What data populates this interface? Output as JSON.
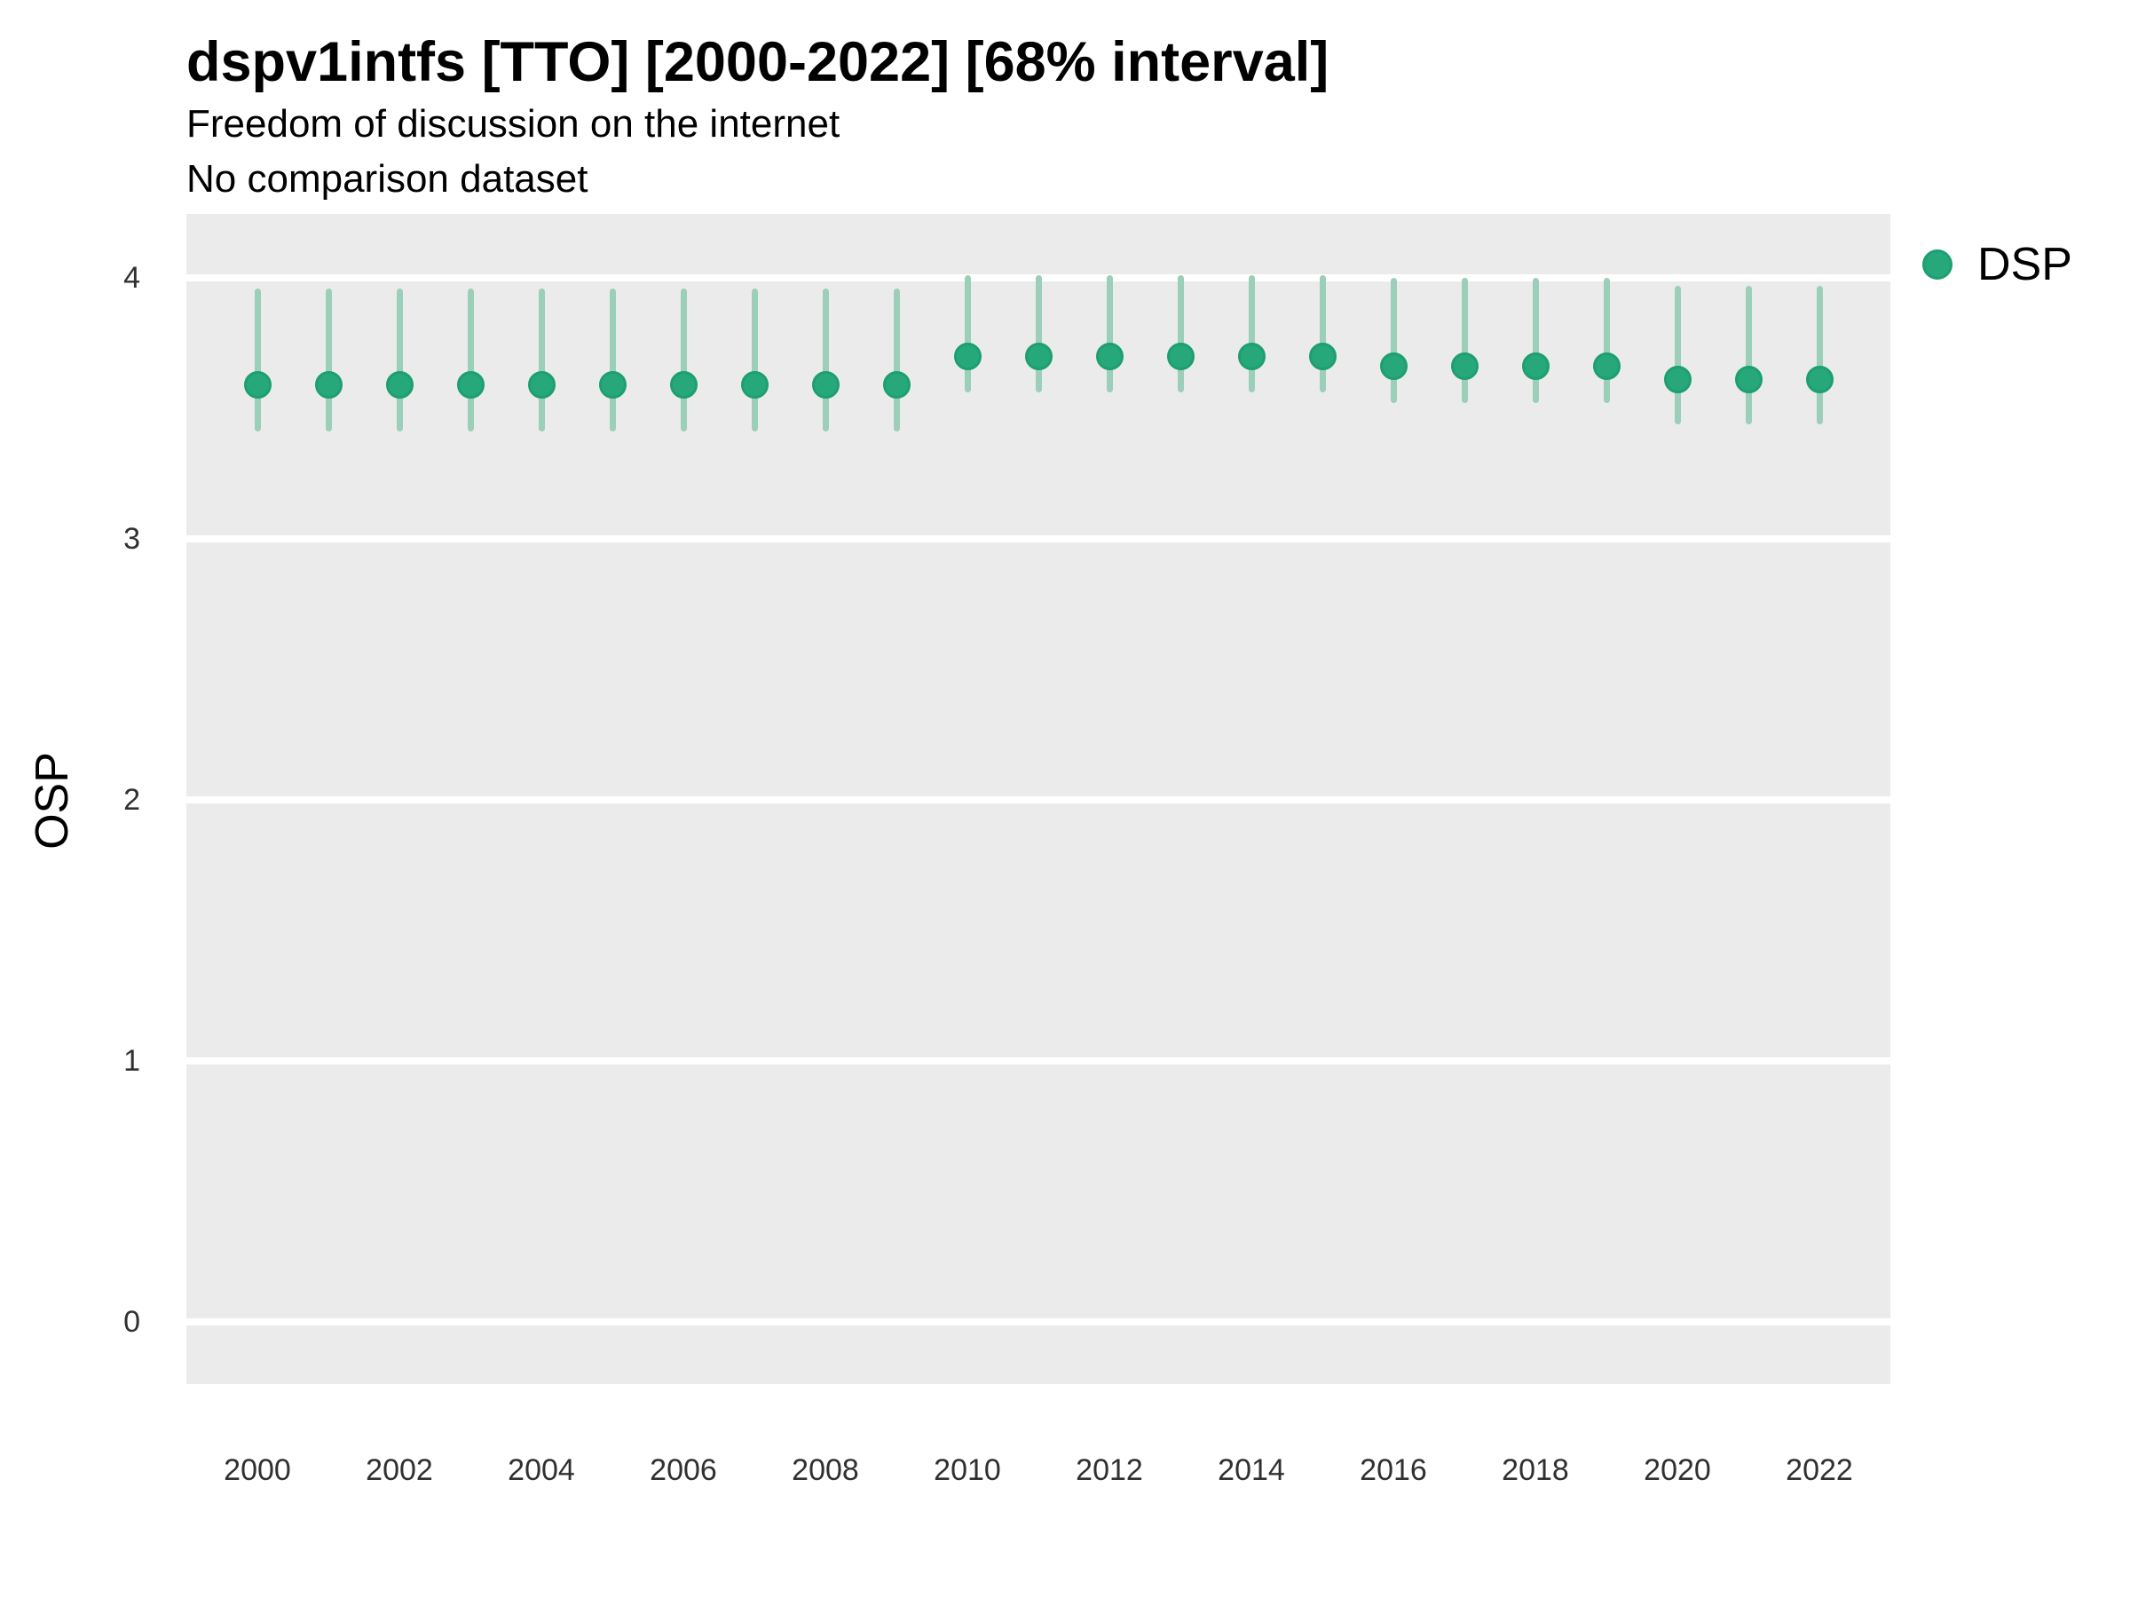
{
  "header": {
    "title": "dspv1intfs [TTO] [2000-2022] [68% interval]",
    "subtitle1": "Freedom of discussion on the internet",
    "subtitle2": "No comparison dataset"
  },
  "legend": {
    "label": "DSP"
  },
  "colors": {
    "point_fill": "#27A87A",
    "point_ring": "#1D9F70",
    "interval": "#9BCFB9",
    "panel_bg": "#EBEBEB",
    "gridline": "#FFFFFF",
    "tick_text": "#303030",
    "text": "#000000"
  },
  "chart_data": {
    "type": "scatter",
    "subtype": "pointrange",
    "title": "dspv1intfs [TTO] [2000-2022] [68% interval]",
    "subtitle": "Freedom of discussion on the internet / No comparison dataset",
    "xlabel": "",
    "ylabel": "OSP",
    "ylim": [
      0,
      4
    ],
    "y_ticks": [
      4,
      3,
      2,
      1,
      0
    ],
    "x_ticks": [
      2000,
      2002,
      2004,
      2006,
      2008,
      2010,
      2012,
      2014,
      2016,
      2018,
      2020,
      2022
    ],
    "grid": "horizontal major gridlines, white on gray panel",
    "legend_position": "right",
    "interval_level": "68%",
    "series": [
      {
        "name": "DSP",
        "points": [
          {
            "year": 2000,
            "value": 3.59,
            "lo": 3.41,
            "hi": 3.96
          },
          {
            "year": 2001,
            "value": 3.59,
            "lo": 3.41,
            "hi": 3.96
          },
          {
            "year": 2002,
            "value": 3.59,
            "lo": 3.41,
            "hi": 3.96
          },
          {
            "year": 2003,
            "value": 3.59,
            "lo": 3.41,
            "hi": 3.96
          },
          {
            "year": 2004,
            "value": 3.59,
            "lo": 3.41,
            "hi": 3.96
          },
          {
            "year": 2005,
            "value": 3.59,
            "lo": 3.41,
            "hi": 3.96
          },
          {
            "year": 2006,
            "value": 3.59,
            "lo": 3.41,
            "hi": 3.96
          },
          {
            "year": 2007,
            "value": 3.59,
            "lo": 3.41,
            "hi": 3.96
          },
          {
            "year": 2008,
            "value": 3.59,
            "lo": 3.41,
            "hi": 3.96
          },
          {
            "year": 2009,
            "value": 3.59,
            "lo": 3.41,
            "hi": 3.96
          },
          {
            "year": 2010,
            "value": 3.7,
            "lo": 3.56,
            "hi": 4.01
          },
          {
            "year": 2011,
            "value": 3.7,
            "lo": 3.56,
            "hi": 4.01
          },
          {
            "year": 2012,
            "value": 3.7,
            "lo": 3.56,
            "hi": 4.01
          },
          {
            "year": 2013,
            "value": 3.7,
            "lo": 3.56,
            "hi": 4.01
          },
          {
            "year": 2014,
            "value": 3.7,
            "lo": 3.56,
            "hi": 4.01
          },
          {
            "year": 2015,
            "value": 3.7,
            "lo": 3.56,
            "hi": 4.01
          },
          {
            "year": 2016,
            "value": 3.66,
            "lo": 3.52,
            "hi": 4.0
          },
          {
            "year": 2017,
            "value": 3.66,
            "lo": 3.52,
            "hi": 4.0
          },
          {
            "year": 2018,
            "value": 3.66,
            "lo": 3.52,
            "hi": 4.0
          },
          {
            "year": 2019,
            "value": 3.66,
            "lo": 3.52,
            "hi": 4.0
          },
          {
            "year": 2020,
            "value": 3.61,
            "lo": 3.44,
            "hi": 3.97
          },
          {
            "year": 2021,
            "value": 3.61,
            "lo": 3.44,
            "hi": 3.97
          },
          {
            "year": 2022,
            "value": 3.61,
            "lo": 3.44,
            "hi": 3.97
          }
        ]
      }
    ]
  }
}
